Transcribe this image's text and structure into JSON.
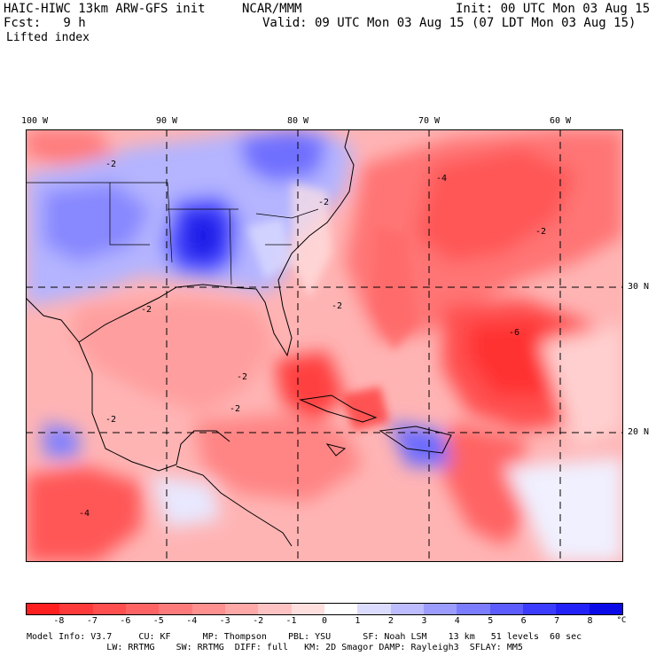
{
  "header": {
    "title_left": "HAIC-HIWC 13km ARW-GFS init",
    "title_center": "NCAR/MMM",
    "init": "Init: 00 UTC Mon 03 Aug 15",
    "fcst": "Fcst:   9 h",
    "valid": "Valid: 09 UTC Mon 03 Aug 15 (07 LDT Mon 03 Aug 15)",
    "field": "Lifted index"
  },
  "axes": {
    "lon_labels": [
      "100 W",
      "90 W",
      "80 W",
      "70 W",
      "60 W"
    ],
    "lat_labels": [
      "30 N",
      "20 N"
    ]
  },
  "colorbar": {
    "ticks": [
      "-8",
      "-7",
      "-6",
      "-5",
      "-4",
      "-3",
      "-2",
      "-1",
      "0",
      "1",
      "2",
      "3",
      "4",
      "5",
      "6",
      "7",
      "8"
    ],
    "unit": "°C",
    "colors": [
      "#ff1f1f",
      "#ff3a3a",
      "#ff4f4f",
      "#ff6464",
      "#ff7a7a",
      "#ff9090",
      "#ffa8a8",
      "#ffc2c2",
      "#ffdede",
      "#ffffff",
      "#dcdcff",
      "#bcbcff",
      "#9c9cff",
      "#7c7cff",
      "#5c5cff",
      "#3c3cff",
      "#2222f8",
      "#0a0ae8"
    ]
  },
  "model_info": {
    "line1": "Model Info: V3.7     CU: KF      MP: Thompson    PBL: YSU      SF: Noah LSM    13 km   51 levels  60 sec",
    "line2": "               LW: RRTMG    SW: RRTMG  DIFF: full   KM: 2D Smagor DAMP: Rayleigh3  SFLAY: MM5"
  },
  "map_contour_labels": [
    "-2",
    "-2",
    "-2",
    "-2",
    "-2",
    "-2",
    "-2",
    "-4",
    "-4",
    "-6",
    "-2"
  ]
}
